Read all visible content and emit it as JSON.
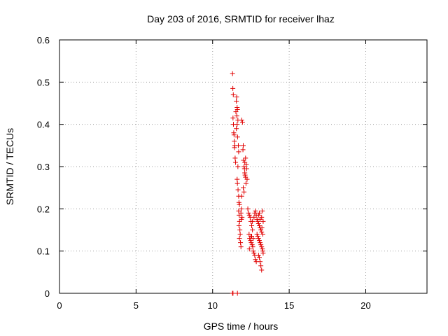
{
  "chart_data": {
    "type": "scatter",
    "title": "Day 203 of 2016, SRMTID for receiver lhaz",
    "xlabel": "GPS time / hours",
    "ylabel": "SRMTID / TECUs",
    "xlim": [
      0,
      24
    ],
    "ylim": [
      0,
      0.6
    ],
    "x_ticks": [
      0,
      5,
      10,
      15,
      20
    ],
    "x_tick_labels": [
      "0",
      "5",
      "10",
      "15",
      "20"
    ],
    "y_ticks": [
      0,
      0.1,
      0.2,
      0.3,
      0.4,
      0.5,
      0.6
    ],
    "y_tick_labels": [
      "0",
      "0.1",
      "0.2",
      "0.3",
      "0.4",
      "0.5",
      "0.6"
    ],
    "grid": true,
    "marker": "+",
    "series": [
      {
        "name": "SRMTID",
        "color": "#e00000",
        "points": [
          [
            11.3,
            0.52
          ],
          [
            11.32,
            0.485
          ],
          [
            11.35,
            0.47
          ],
          [
            11.33,
            0.415
          ],
          [
            11.36,
            0.4
          ],
          [
            11.38,
            0.38
          ],
          [
            11.4,
            0.375
          ],
          [
            11.42,
            0.36
          ],
          [
            11.45,
            0.35
          ],
          [
            11.43,
            0.345
          ],
          [
            11.47,
            0.32
          ],
          [
            11.5,
            0.31
          ],
          [
            11.52,
            0.43
          ],
          [
            11.55,
            0.455
          ],
          [
            11.57,
            0.465
          ],
          [
            11.6,
            0.44
          ],
          [
            11.62,
            0.435
          ],
          [
            11.58,
            0.42
          ],
          [
            11.65,
            0.41
          ],
          [
            11.6,
            0.4
          ],
          [
            11.55,
            0.39
          ],
          [
            11.63,
            0.37
          ],
          [
            11.68,
            0.35
          ],
          [
            11.7,
            0.335
          ],
          [
            11.65,
            0.3
          ],
          [
            11.6,
            0.27
          ],
          [
            11.62,
            0.26
          ],
          [
            11.66,
            0.245
          ],
          [
            11.7,
            0.23
          ],
          [
            11.72,
            0.215
          ],
          [
            11.75,
            0.21
          ],
          [
            11.7,
            0.195
          ],
          [
            11.73,
            0.185
          ],
          [
            11.76,
            0.17
          ],
          [
            11.72,
            0.16
          ],
          [
            11.78,
            0.15
          ],
          [
            11.8,
            0.14
          ],
          [
            11.75,
            0.13
          ],
          [
            11.82,
            0.12
          ],
          [
            11.85,
            0.11
          ],
          [
            11.9,
            0.41
          ],
          [
            11.95,
            0.405
          ],
          [
            12.0,
            0.35
          ],
          [
            11.98,
            0.34
          ],
          [
            12.02,
            0.315
          ],
          [
            12.05,
            0.3
          ],
          [
            12.08,
            0.295
          ],
          [
            12.1,
            0.285
          ],
          [
            12.12,
            0.28
          ],
          [
            12.15,
            0.275
          ],
          [
            12.1,
            0.31
          ],
          [
            12.15,
            0.32
          ],
          [
            12.2,
            0.305
          ],
          [
            12.22,
            0.295
          ],
          [
            12.25,
            0.27
          ],
          [
            12.18,
            0.26
          ],
          [
            12.0,
            0.25
          ],
          [
            12.05,
            0.24
          ],
          [
            11.9,
            0.23
          ],
          [
            11.88,
            0.2
          ],
          [
            11.85,
            0.19
          ],
          [
            11.92,
            0.18
          ],
          [
            11.88,
            0.175
          ],
          [
            12.3,
            0.2
          ],
          [
            12.35,
            0.19
          ],
          [
            12.4,
            0.185
          ],
          [
            12.45,
            0.18
          ],
          [
            12.5,
            0.17
          ],
          [
            12.55,
            0.16
          ],
          [
            12.6,
            0.15
          ],
          [
            12.38,
            0.14
          ],
          [
            12.42,
            0.13
          ],
          [
            12.48,
            0.125
          ],
          [
            12.52,
            0.12
          ],
          [
            12.58,
            0.115
          ],
          [
            12.62,
            0.11
          ],
          [
            12.65,
            0.1
          ],
          [
            12.7,
            0.095
          ],
          [
            12.75,
            0.09
          ],
          [
            12.8,
            0.08
          ],
          [
            12.85,
            0.075
          ],
          [
            12.4,
            0.105
          ],
          [
            12.5,
            0.135
          ],
          [
            12.6,
            0.17
          ],
          [
            12.7,
            0.18
          ],
          [
            12.75,
            0.19
          ],
          [
            12.8,
            0.195
          ],
          [
            12.85,
            0.185
          ],
          [
            12.9,
            0.175
          ],
          [
            12.95,
            0.17
          ],
          [
            13.0,
            0.165
          ],
          [
            13.05,
            0.16
          ],
          [
            13.1,
            0.155
          ],
          [
            13.15,
            0.15
          ],
          [
            13.2,
            0.145
          ],
          [
            12.9,
            0.14
          ],
          [
            12.95,
            0.135
          ],
          [
            13.0,
            0.13
          ],
          [
            13.05,
            0.125
          ],
          [
            13.1,
            0.12
          ],
          [
            13.15,
            0.115
          ],
          [
            13.2,
            0.11
          ],
          [
            13.25,
            0.105
          ],
          [
            13.28,
            0.1
          ],
          [
            13.3,
            0.095
          ],
          [
            13.0,
            0.09
          ],
          [
            13.05,
            0.085
          ],
          [
            13.1,
            0.075
          ],
          [
            13.15,
            0.065
          ],
          [
            13.2,
            0.055
          ],
          [
            13.0,
            0.185
          ],
          [
            13.05,
            0.19
          ],
          [
            13.1,
            0.175
          ],
          [
            13.2,
            0.18
          ],
          [
            13.25,
            0.195
          ],
          [
            13.3,
            0.17
          ],
          [
            13.22,
            0.155
          ],
          [
            13.28,
            0.14
          ],
          [
            12.55,
            0.135
          ],
          [
            12.65,
            0.13
          ],
          [
            11.3,
            0.0
          ],
          [
            11.33,
            0.0
          ],
          [
            11.62,
            0.0
          ]
        ]
      }
    ]
  }
}
